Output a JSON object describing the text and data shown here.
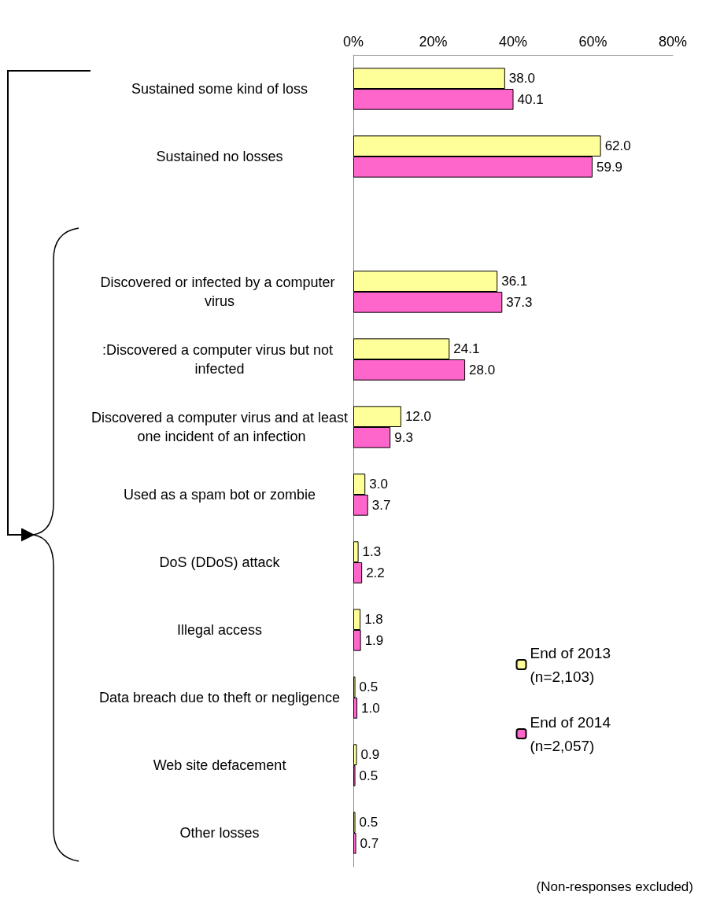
{
  "chart_data": {
    "type": "bar",
    "orientation": "horizontal",
    "categories": [
      "Sustained some kind of loss",
      "Sustained no losses",
      null,
      "Discovered or infected by a computer virus",
      ":Discovered a computer virus but not infected",
      "Discovered a computer virus and at least one incident of an infection",
      "Used as a spam bot or zombie",
      "DoS (DDoS) attack",
      "Illegal access",
      "Data breach due to theft or negligence",
      "Web site defacement",
      "Other losses"
    ],
    "series": [
      {
        "name": "End of 2013\n(n=2,103)",
        "color": "#ffff99",
        "values": [
          38.0,
          62.0,
          null,
          36.1,
          24.1,
          12.0,
          3.0,
          1.3,
          1.8,
          0.5,
          0.9,
          0.5
        ],
        "value_labels": [
          "38.0",
          "62.0",
          null,
          "36.1",
          "24.1",
          "12.0",
          "3.0",
          "1.3",
          "1.8",
          "0.5",
          "0.9",
          "0.5"
        ]
      },
      {
        "name": "End of 2014\n(n=2,057)",
        "color": "#ff66cc",
        "values": [
          40.1,
          59.9,
          null,
          37.3,
          28.0,
          9.3,
          3.7,
          2.2,
          1.9,
          1.0,
          0.5,
          0.7
        ],
        "value_labels": [
          "40.1",
          "59.9",
          null,
          "37.3",
          "28.0",
          "9.3",
          "3.7",
          "2.2",
          "1.9",
          "1.0",
          "0.5",
          "0.7"
        ]
      }
    ],
    "xlim": [
      0,
      80
    ],
    "xticks": [
      {
        "value": 0,
        "label": "0%"
      },
      {
        "value": 20,
        "label": "20%"
      },
      {
        "value": 40,
        "label": "40%"
      },
      {
        "value": 60,
        "label": "60%"
      },
      {
        "value": 80,
        "label": "80%"
      }
    ],
    "grid": false,
    "legend": "bottom right",
    "annotations": [
      "(Non-responses excluded)"
    ]
  }
}
